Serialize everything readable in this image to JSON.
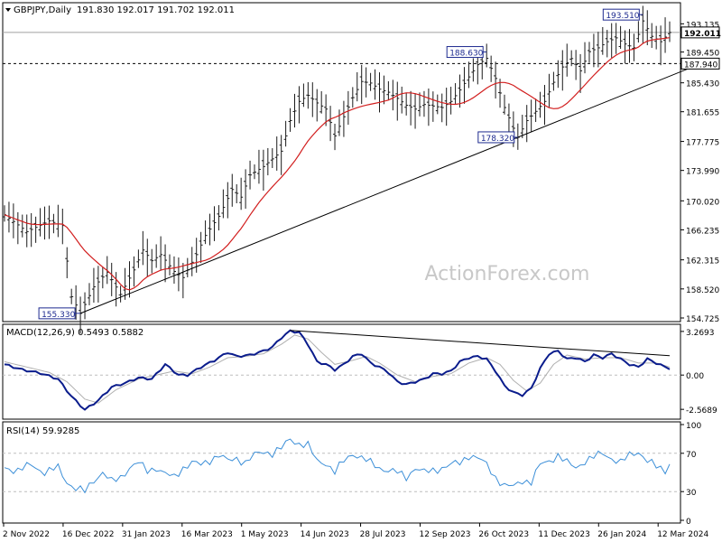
{
  "header": {
    "symbol_label": "GBPJPY,Daily",
    "ohlc_label": "191.830 192.017 191.702 192.011",
    "indicator_macd_label": "MACD(12,26,9) 0.5493 0.5882",
    "indicator_rsi_label": "RSI(14) 59.9285"
  },
  "watermark": "ActionForex.com",
  "colors": {
    "price_bars": "#1a1a1a",
    "moving_average": "#d21f1f",
    "trendline": "#000000",
    "macd_line": "#0a1c8c",
    "macd_signal": "#b0b0b0",
    "rsi_line": "#3c8fd8",
    "grid": "#d9d9d9",
    "label_box": "#1d2a8f"
  },
  "chart_data": [
    {
      "type": "line",
      "panel": "price",
      "series_style": "ohlc-bars",
      "y_ticks": [
        "193.135",
        "189.450",
        "185.430",
        "181.655",
        "177.775",
        "173.990",
        "170.020",
        "166.235",
        "162.315",
        "158.520",
        "154.725"
      ],
      "y_tick_values": [
        193.135,
        189.45,
        185.43,
        181.655,
        177.775,
        173.99,
        170.02,
        166.235,
        162.315,
        158.52,
        154.725
      ],
      "ylim": [
        154.725,
        195.3
      ],
      "x_ticks": [
        "2 Nov 2022",
        "16 Dec 2022",
        "31 Jan 2023",
        "16 Mar 2023",
        "1 May 2023",
        "14 Jun 2023",
        "28 Jul 2023",
        "12 Sep 2023",
        "26 Oct 2023",
        "11 Dec 2023",
        "26 Jan 2024",
        "12 Mar 2024"
      ],
      "current_price_label": "192.011",
      "current_price": 192.011,
      "support_label": "187.940",
      "support_price": 187.94,
      "annotations": [
        {
          "label": "155.330",
          "value": 155.33,
          "index": 17
        },
        {
          "label": "188.630",
          "value": 188.63,
          "index": 108
        },
        {
          "label": "178.320",
          "value": 178.32,
          "index": 115
        },
        {
          "label": "193.510",
          "value": 193.51,
          "index": 143
        }
      ],
      "key_points": [
        [
          0,
          168.2
        ],
        [
          5,
          166.0
        ],
        [
          10,
          167.4
        ],
        [
          13,
          166.8
        ],
        [
          15,
          157.5
        ],
        [
          17,
          155.33
        ],
        [
          20,
          158.8
        ],
        [
          23,
          160.7
        ],
        [
          26,
          157.8
        ],
        [
          29,
          161.0
        ],
        [
          31,
          163.6
        ],
        [
          33,
          162.2
        ],
        [
          35,
          163.0
        ],
        [
          38,
          160.8
        ],
        [
          40,
          160.0
        ],
        [
          43,
          163.0
        ],
        [
          45,
          165.5
        ],
        [
          48,
          168.0
        ],
        [
          51,
          171.5
        ],
        [
          53,
          170.5
        ],
        [
          55,
          173.4
        ],
        [
          58,
          174.5
        ],
        [
          60,
          175.5
        ],
        [
          62,
          176.5
        ],
        [
          64,
          180.5
        ],
        [
          66,
          183.0
        ],
        [
          68,
          183.8
        ],
        [
          70,
          182.8
        ],
        [
          72,
          182.0
        ],
        [
          74,
          178.5
        ],
        [
          76,
          181.0
        ],
        [
          78,
          183.5
        ],
        [
          80,
          185.6
        ],
        [
          82,
          185.4
        ],
        [
          84,
          184.6
        ],
        [
          86,
          184.2
        ],
        [
          88,
          183.4
        ],
        [
          90,
          182.5
        ],
        [
          92,
          182.0
        ],
        [
          94,
          182.6
        ],
        [
          96,
          182.4
        ],
        [
          98,
          182.2
        ],
        [
          100,
          183.0
        ],
        [
          102,
          184.5
        ],
        [
          104,
          186.2
        ],
        [
          106,
          187.8
        ],
        [
          108,
          188.63
        ],
        [
          110,
          186.0
        ],
        [
          112,
          182.2
        ],
        [
          114,
          179.5
        ],
        [
          115,
          178.32
        ],
        [
          117,
          180.5
        ],
        [
          119,
          181.7
        ],
        [
          121,
          183.0
        ],
        [
          123,
          185.5
        ],
        [
          125,
          187.5
        ],
        [
          127,
          188.6
        ],
        [
          129,
          187.0
        ],
        [
          131,
          189.5
        ],
        [
          133,
          190.0
        ],
        [
          135,
          190.8
        ],
        [
          137,
          191.3
        ],
        [
          139,
          190.5
        ],
        [
          141,
          190.0
        ],
        [
          143,
          193.51
        ],
        [
          145,
          191.5
        ],
        [
          147,
          190.8
        ],
        [
          149,
          192.0
        ]
      ]
    },
    {
      "type": "line",
      "panel": "macd",
      "title": "MACD(12,26,9) 0.5493 0.5882",
      "y_ticks": [
        "3.2693",
        "0.00",
        "-2.5689"
      ],
      "y_tick_values": [
        3.2693,
        0.0,
        -2.5689
      ],
      "ylim": [
        -3.1,
        3.6
      ],
      "series": [
        {
          "name": "MACD",
          "key_points": [
            [
              0,
              0.8
            ],
            [
              4,
              0.4
            ],
            [
              8,
              0.15
            ],
            [
              12,
              -0.3
            ],
            [
              15,
              -1.6
            ],
            [
              18,
              -2.6
            ],
            [
              21,
              -1.9
            ],
            [
              24,
              -0.9
            ],
            [
              27,
              -0.6
            ],
            [
              30,
              -0.2
            ],
            [
              33,
              -0.3
            ],
            [
              36,
              0.8
            ],
            [
              39,
              0.0
            ],
            [
              41,
              0.0
            ],
            [
              44,
              0.6
            ],
            [
              47,
              1.1
            ],
            [
              50,
              1.7
            ],
            [
              52,
              1.4
            ],
            [
              55,
              1.5
            ],
            [
              58,
              1.8
            ],
            [
              60,
              2.1
            ],
            [
              62,
              2.8
            ],
            [
              64,
              3.3
            ],
            [
              66,
              3.2
            ],
            [
              68,
              2.3
            ],
            [
              70,
              1.0
            ],
            [
              72,
              0.8
            ],
            [
              74,
              0.4
            ],
            [
              76,
              0.8
            ],
            [
              78,
              1.4
            ],
            [
              80,
              1.6
            ],
            [
              82,
              0.9
            ],
            [
              84,
              0.6
            ],
            [
              86,
              0.2
            ],
            [
              88,
              -0.5
            ],
            [
              90,
              -0.7
            ],
            [
              92,
              -0.5
            ],
            [
              94,
              -0.3
            ],
            [
              96,
              0.1
            ],
            [
              98,
              0.1
            ],
            [
              100,
              0.3
            ],
            [
              102,
              1.0
            ],
            [
              104,
              1.3
            ],
            [
              106,
              1.4
            ],
            [
              108,
              1.2
            ],
            [
              110,
              0.3
            ],
            [
              112,
              -0.8
            ],
            [
              114,
              -1.3
            ],
            [
              116,
              -1.5
            ],
            [
              118,
              -1.0
            ],
            [
              120,
              0.5
            ],
            [
              122,
              1.6
            ],
            [
              124,
              1.8
            ],
            [
              126,
              1.2
            ],
            [
              128,
              1.3
            ],
            [
              130,
              1.0
            ],
            [
              132,
              1.5
            ],
            [
              134,
              1.3
            ],
            [
              136,
              1.6
            ],
            [
              138,
              1.2
            ],
            [
              140,
              0.8
            ],
            [
              142,
              0.6
            ],
            [
              144,
              1.2
            ],
            [
              146,
              0.9
            ],
            [
              148,
              0.6
            ],
            [
              149,
              0.5
            ]
          ]
        },
        {
          "name": "Signal",
          "key_points": [
            [
              0,
              1.0
            ],
            [
              5,
              0.6
            ],
            [
              10,
              0.2
            ],
            [
              14,
              -0.5
            ],
            [
              18,
              -1.8
            ],
            [
              21,
              -2.1
            ],
            [
              25,
              -1.1
            ],
            [
              30,
              -0.3
            ],
            [
              34,
              0.0
            ],
            [
              38,
              0.3
            ],
            [
              42,
              0.1
            ],
            [
              46,
              0.6
            ],
            [
              50,
              1.3
            ],
            [
              54,
              1.4
            ],
            [
              58,
              1.6
            ],
            [
              62,
              2.3
            ],
            [
              65,
              3.0
            ],
            [
              68,
              2.7
            ],
            [
              71,
              1.7
            ],
            [
              74,
              0.8
            ],
            [
              78,
              1.1
            ],
            [
              81,
              1.4
            ],
            [
              84,
              0.9
            ],
            [
              88,
              0.0
            ],
            [
              92,
              -0.5
            ],
            [
              96,
              -0.1
            ],
            [
              100,
              0.1
            ],
            [
              104,
              0.9
            ],
            [
              108,
              1.3
            ],
            [
              111,
              0.8
            ],
            [
              114,
              -0.4
            ],
            [
              117,
              -1.2
            ],
            [
              120,
              -0.6
            ],
            [
              123,
              0.8
            ],
            [
              126,
              1.5
            ],
            [
              130,
              1.2
            ],
            [
              134,
              1.3
            ],
            [
              138,
              1.3
            ],
            [
              142,
              0.9
            ],
            [
              146,
              0.9
            ],
            [
              149,
              0.59
            ]
          ]
        }
      ],
      "trendline_from": [
        64,
        3.35
      ],
      "trendline_to": [
        149,
        1.45
      ]
    },
    {
      "type": "line",
      "panel": "rsi",
      "title": "RSI(14) 59.9285",
      "y_ticks": [
        "100",
        "70",
        "30",
        "0"
      ],
      "y_tick_values": [
        100,
        70,
        30,
        0
      ],
      "ylim": [
        0,
        100
      ],
      "series": [
        {
          "name": "RSI",
          "key_points": [
            [
              0,
              55
            ],
            [
              3,
              52
            ],
            [
              6,
              58
            ],
            [
              9,
              50
            ],
            [
              12,
              55
            ],
            [
              14,
              40
            ],
            [
              16,
              33
            ],
            [
              18,
              30
            ],
            [
              20,
              42
            ],
            [
              22,
              50
            ],
            [
              24,
              40
            ],
            [
              26,
              45
            ],
            [
              28,
              55
            ],
            [
              30,
              60
            ],
            [
              32,
              52
            ],
            [
              34,
              55
            ],
            [
              36,
              48
            ],
            [
              38,
              45
            ],
            [
              40,
              55
            ],
            [
              42,
              60
            ],
            [
              44,
              58
            ],
            [
              46,
              63
            ],
            [
              48,
              68
            ],
            [
              50,
              62
            ],
            [
              52,
              65
            ],
            [
              54,
              60
            ],
            [
              56,
              68
            ],
            [
              58,
              72
            ],
            [
              60,
              70
            ],
            [
              62,
              75
            ],
            [
              64,
              85
            ],
            [
              66,
              80
            ],
            [
              68,
              78
            ],
            [
              70,
              62
            ],
            [
              72,
              60
            ],
            [
              74,
              50
            ],
            [
              76,
              62
            ],
            [
              78,
              70
            ],
            [
              80,
              65
            ],
            [
              82,
              60
            ],
            [
              84,
              55
            ],
            [
              86,
              52
            ],
            [
              88,
              50
            ],
            [
              90,
              45
            ],
            [
              92,
              55
            ],
            [
              94,
              50
            ],
            [
              96,
              52
            ],
            [
              98,
              55
            ],
            [
              100,
              58
            ],
            [
              102,
              60
            ],
            [
              104,
              68
            ],
            [
              106,
              65
            ],
            [
              108,
              58
            ],
            [
              110,
              45
            ],
            [
              112,
              36
            ],
            [
              114,
              35
            ],
            [
              116,
              42
            ],
            [
              118,
              40
            ],
            [
              120,
              58
            ],
            [
              122,
              62
            ],
            [
              124,
              68
            ],
            [
              126,
              60
            ],
            [
              128,
              55
            ],
            [
              130,
              62
            ],
            [
              132,
              66
            ],
            [
              134,
              70
            ],
            [
              136,
              65
            ],
            [
              138,
              60
            ],
            [
              140,
              68
            ],
            [
              142,
              72
            ],
            [
              144,
              62
            ],
            [
              146,
              56
            ],
            [
              148,
              52
            ],
            [
              149,
              60
            ]
          ]
        }
      ]
    }
  ]
}
